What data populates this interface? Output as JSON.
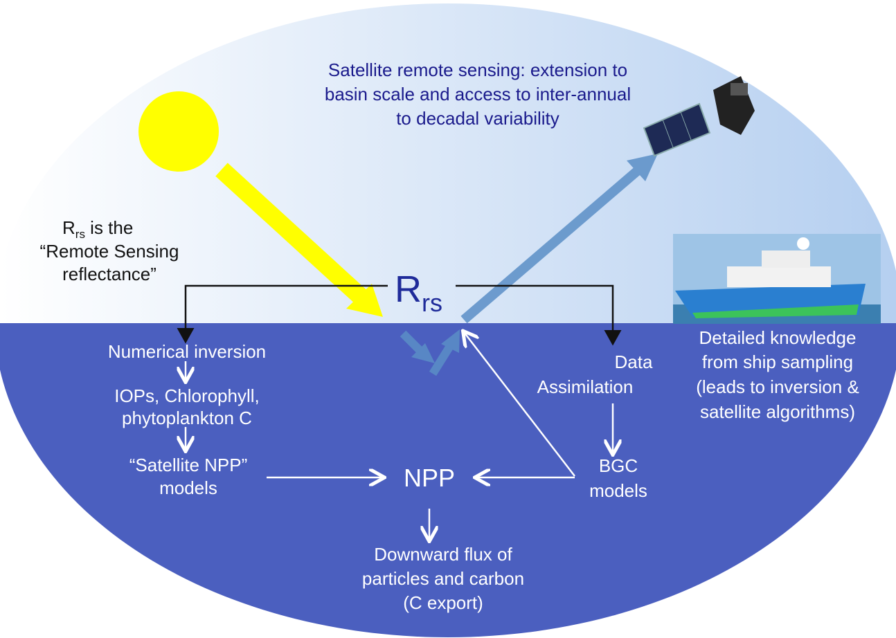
{
  "satellite_note": {
    "lines": [
      "Satellite remote sensing: extension to",
      "basin scale and access to inter-annual",
      "to decadal variability"
    ]
  },
  "rrs_note": {
    "base": "R",
    "sub": "rs",
    "rest": " is the",
    "lines": [
      "“Remote Sensing",
      "reflectance”"
    ]
  },
  "rrs_center": {
    "base": "R",
    "sub": "rs"
  },
  "left_chain": {
    "numerical_inversion": "Numerical inversion",
    "iops": [
      "IOPs, Chlorophyll,",
      "phytoplankton C"
    ],
    "satellite_npp": [
      "“Satellite NPP”",
      "models"
    ]
  },
  "npp": "NPP",
  "right_chain": {
    "data_assimilation": [
      "Data",
      "Assimilation"
    ],
    "bgc": [
      "BGC",
      "models"
    ]
  },
  "ship_note": {
    "lines": [
      "Detailed knowledge",
      "from ship sampling",
      "(leads to inversion &",
      "satellite algorithms)"
    ]
  },
  "export": {
    "lines": [
      "Downward flux of",
      "particles and carbon",
      "(C export)"
    ]
  }
}
